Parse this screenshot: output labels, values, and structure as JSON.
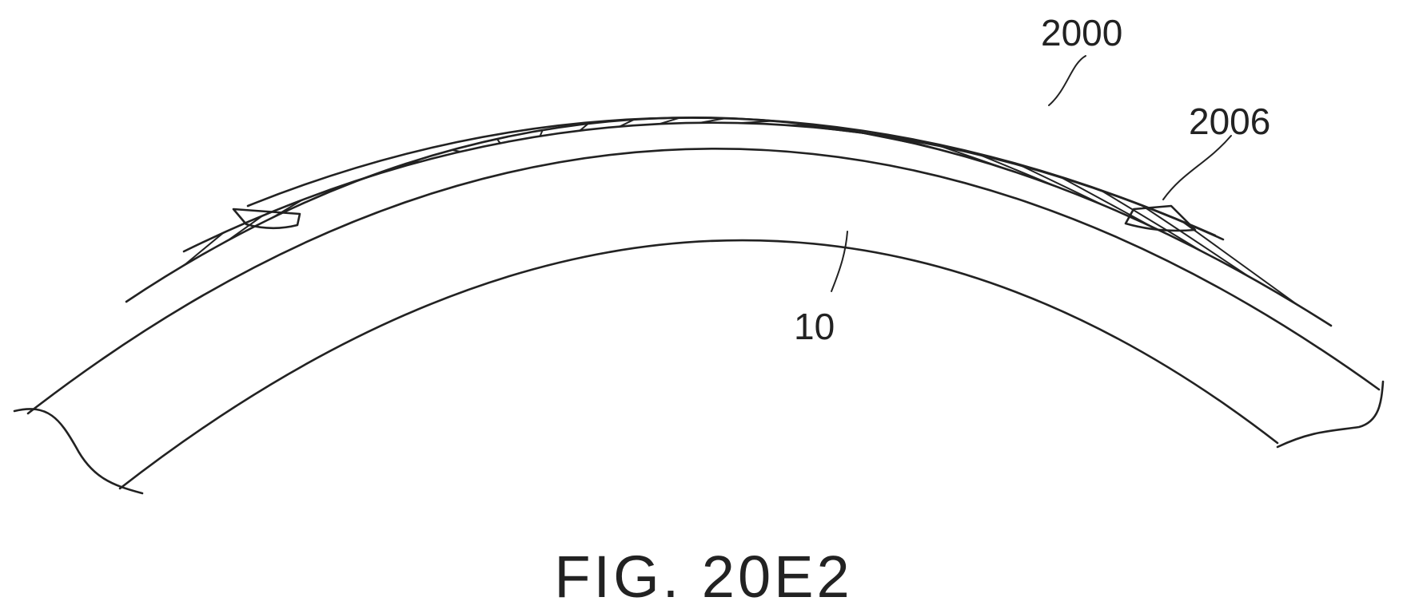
{
  "figure": {
    "caption": "FIG. 20E2",
    "labels": {
      "implant": "2000",
      "anchor": "2006",
      "cornea": "10"
    },
    "colors": {
      "line": "#222222",
      "background": "#ffffff"
    }
  }
}
